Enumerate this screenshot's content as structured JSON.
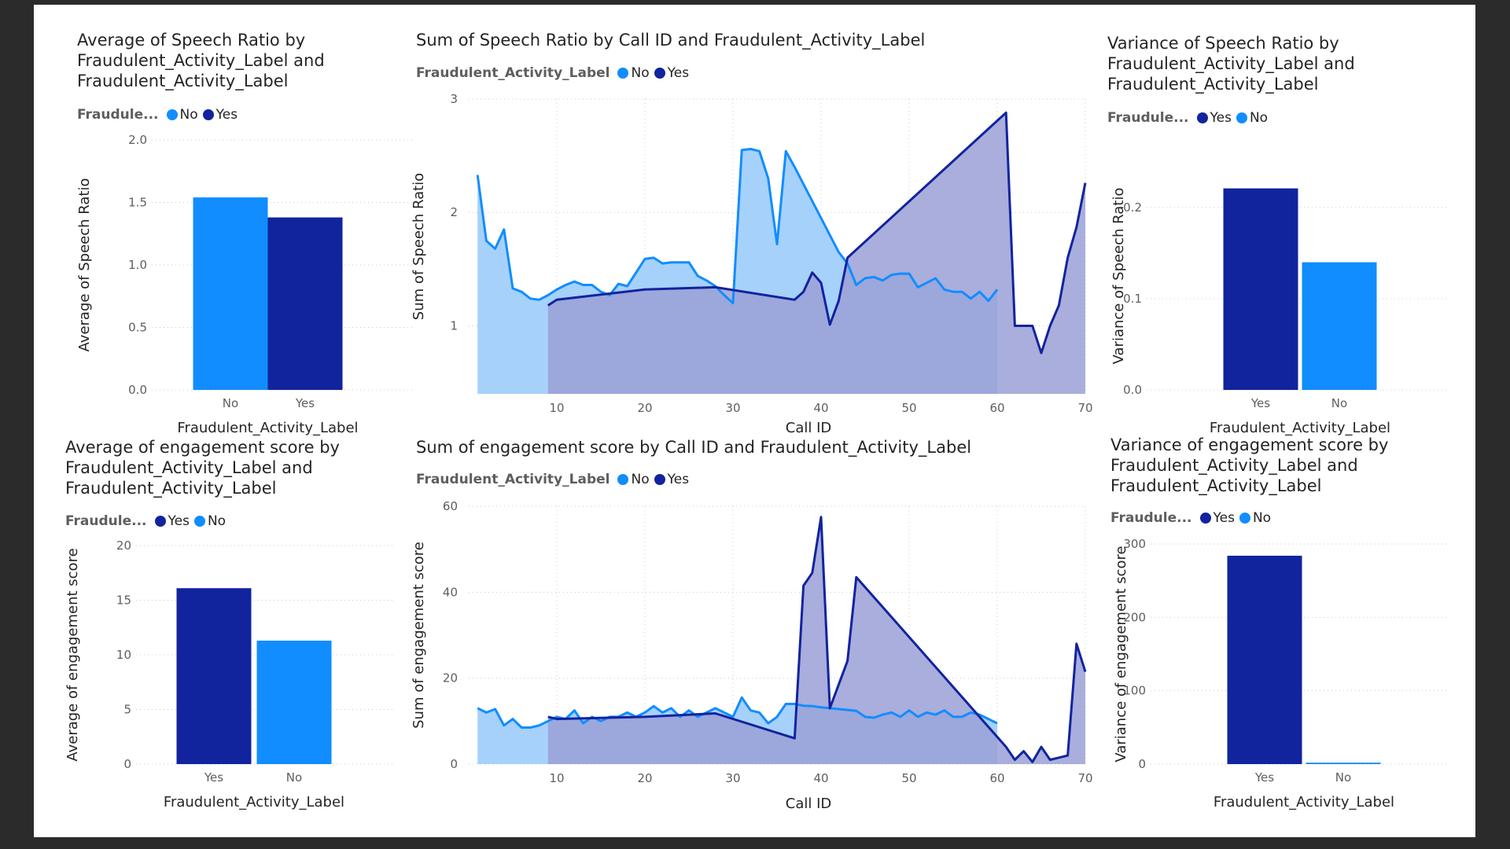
{
  "colors": {
    "no": "#118dff",
    "yes": "#12239e",
    "no_area": "#a6d1fb",
    "yes_area": "#9aa0d6",
    "overlap_area": "#6b8ad8"
  },
  "chart_data": [
    {
      "id": "avg-speech",
      "type": "bar",
      "title_lines": [
        "Average of Speech Ratio by",
        "Fraudulent_Activity_Label and",
        "Fraudulent_Activity_Label"
      ],
      "legend_title": "Fraudule...",
      "legend": [
        {
          "name": "No",
          "color": "#118dff"
        },
        {
          "name": "Yes",
          "color": "#12239e"
        }
      ],
      "categories": [
        "No",
        "Yes"
      ],
      "values": [
        1.54,
        1.38
      ],
      "bar_colors": [
        "#118dff",
        "#12239e"
      ],
      "xlabel": "Fraudulent_Activity_Label",
      "ylabel": "Average of Speech Ratio",
      "ylim": [
        0,
        2
      ],
      "yticks": [
        0,
        0.5,
        1,
        1.5,
        2
      ],
      "ytick_labels": [
        "0.0",
        "0.5",
        "1.0",
        "1.5",
        "2.0"
      ],
      "grid": true
    },
    {
      "id": "sum-speech",
      "type": "area",
      "title": "Sum of Speech Ratio by Call ID and Fraudulent_Activity_Label",
      "legend_title": "Fraudulent_Activity_Label",
      "legend": [
        {
          "name": "No",
          "color": "#118dff"
        },
        {
          "name": "Yes",
          "color": "#12239e"
        }
      ],
      "xlabel": "Call ID",
      "ylabel": "Sum of Speech Ratio",
      "xlim": [
        0,
        70
      ],
      "ylim": [
        0.4,
        3
      ],
      "xticks": [
        10,
        20,
        30,
        40,
        50,
        60,
        70
      ],
      "yticks": [
        1,
        2,
        3
      ],
      "grid": true,
      "series": [
        {
          "name": "No",
          "x": [
            1,
            2,
            3,
            4,
            5,
            6,
            7,
            8,
            9,
            10,
            11,
            12,
            13,
            14,
            15,
            16,
            17,
            18,
            19,
            20,
            21,
            22,
            23,
            24,
            25,
            26,
            27,
            28,
            29,
            30,
            31,
            32,
            33,
            34,
            35,
            36,
            37,
            38,
            39,
            40,
            41,
            42,
            43,
            44,
            45,
            46,
            47,
            48,
            49,
            50,
            51,
            52,
            53,
            54,
            55,
            56,
            57,
            58,
            59,
            60
          ],
          "y": [
            2.33,
            1.75,
            1.68,
            1.85,
            1.33,
            1.3,
            1.24,
            1.23,
            1.27,
            1.32,
            1.36,
            1.39,
            1.36,
            1.36,
            1.3,
            1.27,
            1.37,
            1.35,
            1.47,
            1.59,
            1.6,
            1.55,
            1.56,
            1.56,
            1.56,
            1.44,
            1.4,
            1.35,
            1.27,
            1.2,
            2.55,
            2.56,
            2.54,
            2.3,
            1.72,
            2.54,
            2.4,
            2.25,
            2.1,
            1.95,
            1.8,
            1.65,
            1.55,
            1.36,
            1.42,
            1.43,
            1.4,
            1.45,
            1.46,
            1.46,
            1.34,
            1.38,
            1.42,
            1.32,
            1.3,
            1.3,
            1.24,
            1.3,
            1.22,
            1.32
          ]
        },
        {
          "name": "Yes",
          "x": [
            9,
            10,
            20,
            28,
            37,
            38,
            39,
            40,
            41,
            42,
            43,
            61,
            62,
            63,
            64,
            65,
            66,
            67,
            68,
            69,
            70
          ],
          "y": [
            1.18,
            1.23,
            1.32,
            1.34,
            1.23,
            1.3,
            1.47,
            1.38,
            1.01,
            1.22,
            1.6,
            2.88,
            1.0,
            1.0,
            1.0,
            0.76,
            1.0,
            1.18,
            1.6,
            1.87,
            2.26
          ]
        }
      ]
    },
    {
      "id": "var-speech",
      "type": "bar",
      "title_lines": [
        "Variance of Speech Ratio by",
        "Fraudulent_Activity_Label and",
        "Fraudulent_Activity_Label"
      ],
      "legend_title": "Fraudule...",
      "legend": [
        {
          "name": "Yes",
          "color": "#12239e"
        },
        {
          "name": "No",
          "color": "#118dff"
        }
      ],
      "categories": [
        "Yes",
        "No"
      ],
      "values": [
        0.221,
        0.14
      ],
      "bar_colors": [
        "#12239e",
        "#118dff"
      ],
      "xlabel": "Fraudulent_Activity_Label",
      "ylabel": "Variance of Speech Ratio",
      "ylim": [
        0,
        0.25
      ],
      "yticks": [
        0,
        0.1,
        0.2
      ],
      "ytick_labels": [
        "0.0",
        "0.1",
        "0.2"
      ],
      "grid": true
    },
    {
      "id": "avg-engagement",
      "type": "bar",
      "title_lines": [
        "Average of engagement score by",
        "Fraudulent_Activity_Label and",
        "Fraudulent_Activity_Label"
      ],
      "legend_title": "Fraudule...",
      "legend": [
        {
          "name": "Yes",
          "color": "#12239e"
        },
        {
          "name": "No",
          "color": "#118dff"
        }
      ],
      "categories": [
        "Yes",
        "No"
      ],
      "values": [
        16.1,
        11.3
      ],
      "bar_colors": [
        "#12239e",
        "#118dff"
      ],
      "xlabel": "Fraudulent_Activity_Label",
      "ylabel": "Average of engagement score",
      "ylim": [
        0,
        20
      ],
      "yticks": [
        0,
        5,
        10,
        15,
        20
      ],
      "ytick_labels": [
        "0",
        "5",
        "10",
        "15",
        "20"
      ],
      "grid": true
    },
    {
      "id": "sum-engagement",
      "type": "area",
      "title": "Sum of engagement score by Call ID and Fraudulent_Activity_Label",
      "legend_title": "Fraudulent_Activity_Label",
      "legend": [
        {
          "name": "No",
          "color": "#118dff"
        },
        {
          "name": "Yes",
          "color": "#12239e"
        }
      ],
      "xlabel": "Call ID",
      "ylabel": "Sum of engagement score",
      "xlim": [
        0,
        70
      ],
      "ylim": [
        0,
        60
      ],
      "xticks": [
        10,
        20,
        30,
        40,
        50,
        60,
        70
      ],
      "yticks": [
        0,
        20,
        40,
        60
      ],
      "grid": true,
      "series": [
        {
          "name": "No",
          "x": [
            1,
            2,
            3,
            4,
            5,
            6,
            7,
            8,
            9,
            10,
            11,
            12,
            13,
            14,
            15,
            16,
            17,
            18,
            19,
            20,
            21,
            22,
            23,
            24,
            25,
            26,
            27,
            28,
            29,
            30,
            31,
            32,
            33,
            34,
            35,
            36,
            37,
            38,
            39,
            40,
            41,
            42,
            43,
            44,
            45,
            46,
            47,
            48,
            49,
            50,
            51,
            52,
            53,
            54,
            55,
            56,
            57,
            58,
            59,
            60
          ],
          "y": [
            13,
            12,
            12.8,
            9,
            10.5,
            8.5,
            8.5,
            9,
            10,
            11,
            10.5,
            12.5,
            9.5,
            11,
            10,
            11,
            11,
            12,
            11,
            12,
            13.5,
            12,
            13,
            11,
            12.5,
            11,
            12,
            13,
            12,
            11,
            15.5,
            12.5,
            12,
            9.5,
            11,
            14,
            14,
            13.6,
            13.5,
            13.2,
            13,
            12.8,
            12.6,
            12.4,
            11,
            10.8,
            11.5,
            12,
            11,
            12.5,
            11,
            12,
            11.5,
            12.5,
            11,
            11,
            12,
            11.5,
            10.5,
            9.5
          ]
        },
        {
          "name": "Yes",
          "x": [
            9,
            10,
            20,
            28,
            37,
            38,
            39,
            40,
            41,
            43,
            44,
            61,
            62,
            63,
            64,
            65,
            66,
            67,
            68,
            69,
            70
          ],
          "y": [
            11,
            10.5,
            11,
            11.8,
            6,
            41.5,
            44.5,
            57.5,
            13,
            24,
            43.5,
            4,
            1,
            3,
            0.5,
            4,
            1,
            1.5,
            2,
            28,
            21.5
          ]
        }
      ]
    },
    {
      "id": "var-engagement",
      "type": "bar",
      "title_lines": [
        "Variance of engagement score by",
        "Fraudulent_Activity_Label and",
        "Fraudulent_Activity_Label"
      ],
      "legend_title": "Fraudule...",
      "legend": [
        {
          "name": "Yes",
          "color": "#12239e"
        },
        {
          "name": "No",
          "color": "#118dff"
        }
      ],
      "categories": [
        "Yes",
        "No"
      ],
      "values": [
        284,
        2
      ],
      "bar_colors": [
        "#12239e",
        "#118dff"
      ],
      "xlabel": "Fraudulent_Activity_Label",
      "ylabel": "Variance of engagement score",
      "ylim": [
        0,
        300
      ],
      "yticks": [
        0,
        100,
        200,
        300
      ],
      "ytick_labels": [
        "0",
        "100",
        "200",
        "300"
      ],
      "grid": true
    }
  ]
}
